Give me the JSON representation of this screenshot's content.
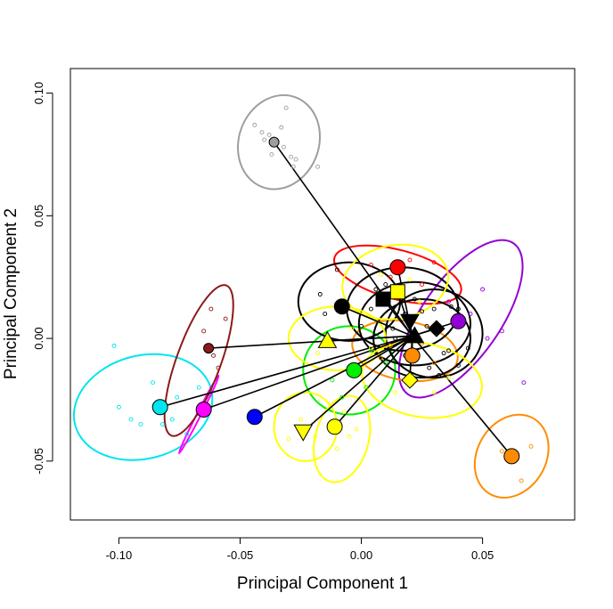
{
  "chart_data": {
    "type": "scatter",
    "title": "",
    "xlabel": "Principal Component 1",
    "ylabel": "Principal Component 2",
    "xlim": [
      -0.12,
      0.088
    ],
    "ylim": [
      -0.074,
      0.11
    ],
    "xticks": [
      -0.1,
      -0.05,
      0.0,
      0.05
    ],
    "xtick_labels": [
      "-0.10",
      "-0.05",
      "0.00",
      "0.05"
    ],
    "yticks": [
      -0.05,
      0.0,
      0.05,
      0.1
    ],
    "ytick_labels": [
      "-0.05",
      "0.00",
      "0.05",
      "0.10"
    ],
    "grid": false,
    "legend": "none",
    "hub": {
      "x": 0.021,
      "y": 0.001
    },
    "groups": [
      {
        "color": "#9e9e9e",
        "centroid": {
          "x": -0.036,
          "y": 0.08
        },
        "marker": "circle",
        "ellipse": {
          "cx": -0.034,
          "cy": 0.08,
          "rx": 0.0165,
          "ry": 0.0195,
          "angle": -20
        },
        "points": [
          [
            -0.044,
            0.087
          ],
          [
            -0.041,
            0.084
          ],
          [
            -0.04,
            0.081
          ],
          [
            -0.038,
            0.083
          ],
          [
            -0.035,
            0.08
          ],
          [
            -0.032,
            0.078
          ],
          [
            -0.031,
            0.094
          ],
          [
            -0.029,
            0.074
          ],
          [
            -0.027,
            0.073
          ],
          [
            -0.018,
            0.07
          ],
          [
            -0.033,
            0.086
          ],
          [
            -0.037,
            0.075
          ],
          [
            -0.028,
            0.07
          ]
        ]
      },
      {
        "color": "#ff0000",
        "centroid": {
          "x": 0.015,
          "y": 0.029
        },
        "marker": "circle",
        "ellipse": {
          "cx": 0.015,
          "cy": 0.026,
          "rx": 0.027,
          "ry": 0.01,
          "angle": -15
        },
        "points": [
          [
            0.004,
            0.03
          ],
          [
            0.02,
            0.032
          ],
          [
            0.03,
            0.031
          ],
          [
            0.012,
            0.025
          ],
          [
            0.025,
            0.022
          ]
        ]
      },
      {
        "color": "#9400d3",
        "centroid": {
          "x": 0.04,
          "y": 0.007
        },
        "marker": "circle",
        "ellipse": {
          "cx": 0.041,
          "cy": 0.008,
          "rx": 0.038,
          "ry": 0.016,
          "angle": 55
        },
        "points": [
          [
            0.052,
            0.0
          ],
          [
            0.058,
            0.003
          ],
          [
            0.045,
            0.01
          ],
          [
            0.067,
            -0.018
          ],
          [
            0.05,
            0.02
          ],
          [
            0.036,
            0.015
          ]
        ]
      },
      {
        "color": "#ff8c00",
        "centroid": {
          "x": 0.062,
          "y": -0.048
        },
        "marker": "circle",
        "ellipse": {
          "cx": 0.062,
          "cy": -0.048,
          "rx": 0.018,
          "ry": 0.014,
          "angle": 60
        },
        "points": [
          [
            0.058,
            -0.046
          ],
          [
            0.07,
            -0.044
          ],
          [
            0.066,
            -0.058
          ]
        ]
      },
      {
        "color": "#ff8c00",
        "centroid": {
          "x": 0.021,
          "y": -0.007
        },
        "marker": "circle",
        "ellipse": {
          "cx": 0.018,
          "cy": -0.005,
          "rx": 0.022,
          "ry": 0.012,
          "angle": -10
        },
        "points": [
          [
            0.012,
            -0.003
          ],
          [
            0.03,
            -0.01
          ],
          [
            0.025,
            -0.002
          ],
          [
            0.008,
            -0.008
          ]
        ]
      },
      {
        "color": "#00e5ee",
        "centroid": {
          "x": -0.083,
          "y": -0.028
        },
        "marker": "circle",
        "ellipse": {
          "cx": -0.09,
          "cy": -0.028,
          "rx": 0.029,
          "ry": 0.021,
          "angle": 15
        },
        "points": [
          [
            -0.102,
            -0.003
          ],
          [
            -0.1,
            -0.028
          ],
          [
            -0.095,
            -0.033
          ],
          [
            -0.091,
            -0.035
          ],
          [
            -0.086,
            -0.018
          ],
          [
            -0.082,
            -0.035
          ],
          [
            -0.078,
            -0.033
          ],
          [
            -0.076,
            -0.024
          ],
          [
            -0.072,
            -0.039
          ],
          [
            -0.067,
            -0.02
          ]
        ]
      },
      {
        "color": "#ff00ff",
        "centroid": {
          "x": -0.065,
          "y": -0.029
        },
        "marker": "circle",
        "ellipse": {
          "cx": -0.067,
          "cy": -0.031,
          "rx": 0.018,
          "ry": 0.0008,
          "angle": 63
        },
        "points": []
      },
      {
        "color": "#8b1a1a",
        "centroid": {
          "x": -0.063,
          "y": -0.004
        },
        "marker": "circle",
        "ellipse": {
          "cx": -0.067,
          "cy": -0.009,
          "rx": 0.033,
          "ry": 0.009,
          "angle": 70
        },
        "points": [
          [
            -0.059,
            -0.012
          ],
          [
            -0.062,
            0.012
          ],
          [
            -0.056,
            0.008
          ],
          [
            -0.061,
            -0.007
          ],
          [
            -0.065,
            0.003
          ]
        ]
      },
      {
        "color": "#0000ff",
        "centroid": {
          "x": -0.044,
          "y": -0.032
        },
        "marker": "circle",
        "ellipse": null,
        "points": []
      },
      {
        "color": "#00ee00",
        "centroid": {
          "x": -0.003,
          "y": -0.013
        },
        "marker": "circle",
        "ellipse": {
          "cx": -0.005,
          "cy": -0.013,
          "rx": 0.019,
          "ry": 0.018,
          "angle": 0
        },
        "points": [
          [
            -0.012,
            -0.017
          ],
          [
            0.004,
            -0.005
          ],
          [
            -0.008,
            -0.024
          ],
          [
            0.01,
            -0.01
          ],
          [
            0.002,
            -0.02
          ]
        ]
      },
      {
        "color": "#000000",
        "centroid": {
          "x": -0.008,
          "y": 0.013
        },
        "marker": "circle",
        "ellipse": {
          "cx": -0.005,
          "cy": 0.015,
          "rx": 0.021,
          "ry": 0.016,
          "angle": 0
        },
        "points": [
          [
            -0.017,
            0.018
          ],
          [
            -0.01,
            0.028
          ],
          [
            0.0,
            0.005
          ],
          [
            0.006,
            0.02
          ],
          [
            -0.015,
            0.01
          ],
          [
            0.004,
            0.012
          ]
        ]
      },
      {
        "color": "#000000",
        "centroid": {
          "x": 0.009,
          "y": 0.016
        },
        "marker": "square",
        "ellipse": {
          "cx": 0.017,
          "cy": 0.012,
          "rx": 0.023,
          "ry": 0.017,
          "angle": 0
        },
        "points": [
          [
            0.01,
            0.022
          ],
          [
            0.018,
            0.01
          ],
          [
            0.022,
            0.016
          ],
          [
            0.027,
            0.005
          ],
          [
            0.013,
            0.004
          ],
          [
            0.03,
            0.012
          ]
        ]
      },
      {
        "color": "#000000",
        "centroid": {
          "x": 0.02,
          "y": 0.007
        },
        "marker": "triangle-down",
        "ellipse": {
          "cx": 0.022,
          "cy": 0.006,
          "rx": 0.023,
          "ry": 0.017,
          "angle": 0
        },
        "points": [
          [
            0.014,
            0.0
          ],
          [
            0.025,
            0.011
          ],
          [
            0.033,
            0.004
          ],
          [
            0.036,
            -0.005
          ],
          [
            0.04,
            0.012
          ]
        ]
      },
      {
        "color": "#000000",
        "centroid": {
          "x": 0.022,
          "y": 0.001
        },
        "marker": "triangle",
        "ellipse": {
          "cx": 0.025,
          "cy": 0.0,
          "rx": 0.02,
          "ry": 0.016,
          "angle": 0
        },
        "points": [
          [
            0.018,
            -0.007
          ],
          [
            0.028,
            -0.012
          ],
          [
            0.034,
            -0.006
          ],
          [
            0.04,
            -0.011
          ]
        ]
      },
      {
        "color": "#000000",
        "centroid": {
          "x": 0.031,
          "y": 0.004
        },
        "marker": "diamond",
        "ellipse": {
          "cx": 0.03,
          "cy": 0.002,
          "rx": 0.02,
          "ry": 0.018,
          "angle": 0
        },
        "points": [
          [
            0.037,
            0.013
          ],
          [
            0.042,
            0.006
          ],
          [
            0.044,
            -0.004
          ],
          [
            0.032,
            -0.015
          ]
        ]
      },
      {
        "color": "#ffff00",
        "centroid": {
          "x": 0.015,
          "y": 0.019
        },
        "marker": "square",
        "ellipse": {
          "cx": 0.014,
          "cy": 0.023,
          "rx": 0.022,
          "ry": 0.015,
          "angle": 10
        },
        "points": [
          [
            0.008,
            0.026
          ],
          [
            0.02,
            0.024
          ],
          [
            0.024,
            0.015
          ]
        ]
      },
      {
        "color": "#ffff00",
        "centroid": {
          "x": -0.014,
          "y": -0.001
        },
        "marker": "triangle",
        "ellipse": {
          "cx": -0.01,
          "cy": 0.0,
          "rx": 0.02,
          "ry": 0.013,
          "angle": 0
        },
        "points": [
          [
            -0.018,
            -0.006
          ],
          [
            -0.004,
            0.004
          ],
          [
            0.004,
            -0.004
          ]
        ]
      },
      {
        "color": "#ffff00",
        "centroid": {
          "x": 0.02,
          "y": -0.017
        },
        "marker": "diamond",
        "ellipse": {
          "cx": 0.025,
          "cy": -0.017,
          "rx": 0.025,
          "ry": 0.015,
          "angle": -10
        },
        "points": [
          [
            0.03,
            -0.022
          ],
          [
            0.036,
            -0.016
          ],
          [
            0.014,
            -0.022
          ]
        ]
      },
      {
        "color": "#ffff00",
        "centroid": {
          "x": -0.024,
          "y": -0.038
        },
        "marker": "triangle-down",
        "ellipse": {
          "cx": -0.023,
          "cy": -0.036,
          "rx": 0.013,
          "ry": 0.014,
          "angle": 0
        },
        "points": [
          [
            -0.025,
            -0.033
          ],
          [
            -0.019,
            -0.04
          ],
          [
            -0.03,
            -0.041
          ]
        ]
      },
      {
        "color": "#ffff00",
        "centroid": {
          "x": -0.011,
          "y": -0.036
        },
        "marker": "circle",
        "ellipse": {
          "cx": -0.008,
          "cy": -0.041,
          "rx": 0.011,
          "ry": 0.018,
          "angle": -15
        },
        "points": [
          [
            -0.005,
            -0.04
          ],
          [
            -0.01,
            -0.045
          ],
          [
            -0.002,
            -0.037
          ],
          [
            -0.007,
            -0.03
          ]
        ]
      }
    ]
  }
}
